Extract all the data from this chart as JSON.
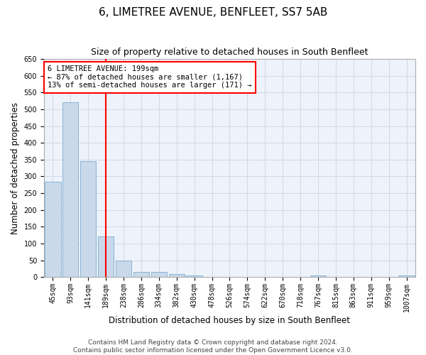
{
  "title": "6, LIMETREE AVENUE, BENFLEET, SS7 5AB",
  "subtitle": "Size of property relative to detached houses in South Benfleet",
  "xlabel": "Distribution of detached houses by size in South Benfleet",
  "ylabel": "Number of detached properties",
  "categories": [
    "45sqm",
    "93sqm",
    "141sqm",
    "189sqm",
    "238sqm",
    "286sqm",
    "334sqm",
    "382sqm",
    "430sqm",
    "478sqm",
    "526sqm",
    "574sqm",
    "622sqm",
    "670sqm",
    "718sqm",
    "767sqm",
    "815sqm",
    "863sqm",
    "911sqm",
    "959sqm",
    "1007sqm"
  ],
  "values": [
    283,
    522,
    345,
    120,
    49,
    16,
    15,
    8,
    4,
    0,
    0,
    0,
    0,
    0,
    0,
    5,
    0,
    0,
    0,
    0,
    4
  ],
  "bar_color": "#c9d9ea",
  "bar_edge_color": "#7aaccf",
  "grid_color": "#d0daea",
  "background_color": "#eef2fa",
  "red_line_index": 3,
  "annotation_text_line1": "6 LIMETREE AVENUE: 199sqm",
  "annotation_text_line2": "← 87% of detached houses are smaller (1,167)",
  "annotation_text_line3": "13% of semi-detached houses are larger (171) →",
  "annotation_box_color": "white",
  "annotation_box_edge_color": "red",
  "ylim": [
    0,
    650
  ],
  "yticks": [
    0,
    50,
    100,
    150,
    200,
    250,
    300,
    350,
    400,
    450,
    500,
    550,
    600,
    650
  ],
  "footer1": "Contains HM Land Registry data © Crown copyright and database right 2024.",
  "footer2": "Contains public sector information licensed under the Open Government Licence v3.0.",
  "title_fontsize": 11,
  "subtitle_fontsize": 9,
  "xlabel_fontsize": 8.5,
  "ylabel_fontsize": 8.5,
  "tick_fontsize": 7,
  "footer_fontsize": 6.5,
  "annotation_fontsize": 7.5
}
